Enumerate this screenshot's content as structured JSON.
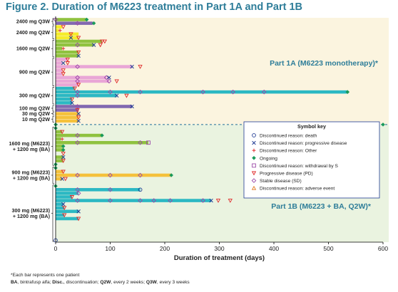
{
  "figure_title": "Figure 2. Duration of M6223 treatment in Part 1A and Part 1B",
  "footnotes": {
    "line1": "*Each bar represents one patient",
    "line2": [
      {
        "t": "BA",
        "b": true
      },
      {
        "t": ", bintrafusp alfa; ",
        "b": false
      },
      {
        "t": "Disc.",
        "b": true
      },
      {
        "t": ", discontinuation; ",
        "b": false
      },
      {
        "t": "Q2W",
        "b": true
      },
      {
        "t": ", every 2 weeks; ",
        "b": false
      },
      {
        "t": "Q3W",
        "b": true
      },
      {
        "t": ", every 3 weeks",
        "b": false
      }
    ]
  },
  "colors": {
    "part1a_bg": "#fbf4df",
    "part1b_bg": "#eaf3e0",
    "yellow": "#f5ec2a",
    "teal": "#2bb8c3",
    "purple": "#8268b0",
    "pink": "#e9a6d6",
    "green": "#8fc23f",
    "orange": "#f5c13b",
    "sym_blue": "#1f3a93",
    "sym_red": "#e02a2a",
    "sym_green": "#1a9a5a",
    "sym_purple": "#9b4aa8",
    "sym_orange": "#e2791c",
    "title_color": "#2e7d99"
  },
  "chart_data": {
    "type": "swimmer",
    "xlabel": "Duration of treatment (days)",
    "xlim": [
      0,
      600
    ],
    "xticks": [
      0,
      100,
      200,
      300,
      400,
      500,
      600
    ],
    "n_rows": 62,
    "part_boundary_after_row": 29,
    "part_labels": [
      "Part 1A (M6223 monotherapy)*",
      "Part 1B (M6223 + BA, Q2W)*"
    ],
    "group_labels": [
      {
        "lines": [
          "2400 mg Q3W"
        ],
        "rows": [
          0,
          1
        ]
      },
      {
        "lines": [
          "2400 mg Q2W"
        ],
        "rows": [
          2,
          5
        ]
      },
      {
        "lines": [
          "1600 mg Q2W"
        ],
        "rows": [
          6,
          10
        ]
      },
      {
        "lines": [
          "900 mg Q2W"
        ],
        "rows": [
          11,
          18
        ]
      },
      {
        "lines": [
          "300 mg Q2W"
        ],
        "rows": [
          19,
          23
        ]
      },
      {
        "lines": [
          "100 mg Q2W"
        ],
        "rows": [
          24,
          25
        ]
      },
      {
        "lines": [
          "30 mg Q2W"
        ],
        "rows": [
          26,
          26
        ]
      },
      {
        "lines": [
          "10 mg Q2W"
        ],
        "rows": [
          27,
          28
        ]
      },
      {
        "lines": [
          "1600 mg (M6223)",
          "+ 1200 mg (BA)"
        ],
        "rows": [
          30,
          40
        ]
      },
      {
        "lines": [
          "900 mg (M6223)",
          "+ 1200 mg (BA)"
        ],
        "rows": [
          41,
          45
        ]
      },
      {
        "lines": [
          "300 mg (M6223)",
          "+ 1200 mg (BA)"
        ],
        "rows": [
          46,
          61
        ]
      }
    ],
    "bars": [
      {
        "row": 0,
        "end": 57,
        "color": "green"
      },
      {
        "row": 1,
        "end": 68,
        "color": "purple"
      },
      {
        "row": 2,
        "end": 12,
        "color": "yellow"
      },
      {
        "row": 3,
        "end": 6,
        "color": "yellow"
      },
      {
        "row": 4,
        "end": 42,
        "color": "yellow"
      },
      {
        "row": 5,
        "end": 42,
        "color": "yellow"
      },
      {
        "row": 6,
        "end": 85,
        "color": "green"
      },
      {
        "row": 7,
        "end": 70,
        "color": "green"
      },
      {
        "row": 8,
        "end": 12,
        "color": "green"
      },
      {
        "row": 9,
        "end": 42,
        "color": "green"
      },
      {
        "row": 10,
        "end": 42,
        "color": "green"
      },
      {
        "row": 11,
        "end": 22,
        "color": "pink"
      },
      {
        "row": 12,
        "end": 12,
        "color": "pink"
      },
      {
        "row": 13,
        "end": 140,
        "color": "pink"
      },
      {
        "row": 14,
        "end": 12,
        "color": "pink"
      },
      {
        "row": 15,
        "end": 12,
        "color": "pink"
      },
      {
        "row": 16,
        "end": 93,
        "color": "pink"
      },
      {
        "row": 17,
        "end": 98,
        "color": "pink"
      },
      {
        "row": 18,
        "end": 42,
        "color": "pink"
      },
      {
        "row": 19,
        "end": 35,
        "color": "teal"
      },
      {
        "row": 20,
        "end": 535,
        "color": "teal"
      },
      {
        "row": 21,
        "end": 112,
        "color": "teal"
      },
      {
        "row": 22,
        "end": 30,
        "color": "teal"
      },
      {
        "row": 23,
        "end": 30,
        "color": "teal"
      },
      {
        "row": 24,
        "end": 140,
        "color": "purple"
      },
      {
        "row": 25,
        "end": 42,
        "color": "purple"
      },
      {
        "row": 26,
        "end": 42,
        "color": "orange"
      },
      {
        "row": 27,
        "end": 42,
        "color": "orange"
      },
      {
        "row": 28,
        "end": 42,
        "color": "orange"
      },
      {
        "row": 31,
        "end": 12,
        "color": "green"
      },
      {
        "row": 32,
        "end": 85,
        "color": "green"
      },
      {
        "row": 33,
        "end": 10,
        "color": "green"
      },
      {
        "row": 34,
        "end": 170,
        "color": "green"
      },
      {
        "row": 35,
        "end": 14,
        "color": "green"
      },
      {
        "row": 36,
        "end": 14,
        "color": "green"
      },
      {
        "row": 38,
        "end": 14,
        "color": "green"
      },
      {
        "row": 39,
        "end": 14,
        "color": "green"
      },
      {
        "row": 42,
        "end": 14,
        "color": "orange"
      },
      {
        "row": 43,
        "end": 212,
        "color": "orange"
      },
      {
        "row": 44,
        "end": 12,
        "color": "orange"
      },
      {
        "row": 47,
        "end": 155,
        "color": "teal"
      },
      {
        "row": 48,
        "end": 42,
        "color": "teal"
      },
      {
        "row": 49,
        "end": 30,
        "color": "teal"
      },
      {
        "row": 50,
        "end": 285,
        "color": "teal"
      },
      {
        "row": 51,
        "end": 14,
        "color": "teal"
      },
      {
        "row": 52,
        "end": 16,
        "color": "teal"
      },
      {
        "row": 53,
        "end": 42,
        "color": "teal"
      },
      {
        "row": 54,
        "end": 16,
        "color": "teal"
      },
      {
        "row": 55,
        "end": 42,
        "color": "teal"
      }
    ],
    "markers": [
      {
        "row": 0,
        "x": 0,
        "type": "sd"
      },
      {
        "row": 0,
        "x": 57,
        "type": "ongoing"
      },
      {
        "row": 1,
        "x": 40,
        "type": "sd"
      },
      {
        "row": 1,
        "x": 70,
        "type": "ongoing"
      },
      {
        "row": 2,
        "x": 14,
        "type": "pd"
      },
      {
        "row": 3,
        "x": 8,
        "type": "other"
      },
      {
        "row": 4,
        "x": 28,
        "type": "pd"
      },
      {
        "row": 5,
        "x": 28,
        "type": "cross"
      },
      {
        "row": 5,
        "x": 42,
        "type": "pd"
      },
      {
        "row": 6,
        "x": 85,
        "type": "pd"
      },
      {
        "row": 6,
        "x": 90,
        "type": "pd"
      },
      {
        "row": 7,
        "x": 40,
        "type": "sd"
      },
      {
        "row": 7,
        "x": 70,
        "type": "cross"
      },
      {
        "row": 7,
        "x": 82,
        "type": "pd"
      },
      {
        "row": 8,
        "x": 14,
        "type": "other"
      },
      {
        "row": 9,
        "x": 42,
        "type": "pd"
      },
      {
        "row": 10,
        "x": 42,
        "type": "cross"
      },
      {
        "row": 11,
        "x": 22,
        "type": "pd"
      },
      {
        "row": 12,
        "x": 14,
        "type": "cross"
      },
      {
        "row": 12,
        "x": 22,
        "type": "pd"
      },
      {
        "row": 13,
        "x": 40,
        "type": "sd"
      },
      {
        "row": 13,
        "x": 140,
        "type": "cross"
      },
      {
        "row": 13,
        "x": 155,
        "type": "pd"
      },
      {
        "row": 14,
        "x": 14,
        "type": "pd"
      },
      {
        "row": 15,
        "x": 14,
        "type": "pd"
      },
      {
        "row": 16,
        "x": 40,
        "type": "sd"
      },
      {
        "row": 16,
        "x": 93,
        "type": "sd"
      },
      {
        "row": 16,
        "x": 98,
        "type": "cross"
      },
      {
        "row": 17,
        "x": 40,
        "type": "sd"
      },
      {
        "row": 17,
        "x": 98,
        "type": "sd"
      },
      {
        "row": 17,
        "x": 112,
        "type": "pd"
      },
      {
        "row": 18,
        "x": 42,
        "type": "pd"
      },
      {
        "row": 19,
        "x": 35,
        "type": "pd"
      },
      {
        "row": 20,
        "x": 40,
        "type": "sd"
      },
      {
        "row": 20,
        "x": 100,
        "type": "sd"
      },
      {
        "row": 20,
        "x": 155,
        "type": "sd"
      },
      {
        "row": 20,
        "x": 270,
        "type": "sd"
      },
      {
        "row": 20,
        "x": 325,
        "type": "sd"
      },
      {
        "row": 20,
        "x": 382,
        "type": "sd"
      },
      {
        "row": 20,
        "x": 535,
        "type": "ongoing"
      },
      {
        "row": 21,
        "x": 40,
        "type": "sd"
      },
      {
        "row": 21,
        "x": 112,
        "type": "cross"
      },
      {
        "row": 21,
        "x": 130,
        "type": "pd"
      },
      {
        "row": 22,
        "x": 30,
        "type": "pd"
      },
      {
        "row": 23,
        "x": 30,
        "type": "cross"
      },
      {
        "row": 24,
        "x": 40,
        "type": "sd"
      },
      {
        "row": 24,
        "x": 140,
        "type": "cross"
      },
      {
        "row": 25,
        "x": 40,
        "type": "pd"
      },
      {
        "row": 26,
        "x": 42,
        "type": "cross"
      },
      {
        "row": 27,
        "x": 42,
        "type": "pd"
      },
      {
        "row": 28,
        "x": 42,
        "type": "cross"
      },
      {
        "row": 29,
        "x": 0,
        "type": "ongoing"
      },
      {
        "row": 29,
        "x": 600,
        "type": "ongoing"
      },
      {
        "row": 30,
        "x": 0,
        "type": "ongoing"
      },
      {
        "row": 31,
        "x": 12,
        "type": "pd"
      },
      {
        "row": 32,
        "x": 40,
        "type": "sd"
      },
      {
        "row": 32,
        "x": 85,
        "type": "ongoing"
      },
      {
        "row": 33,
        "x": 12,
        "type": "other"
      },
      {
        "row": 34,
        "x": 40,
        "type": "sd"
      },
      {
        "row": 34,
        "x": 155,
        "type": "sd"
      },
      {
        "row": 34,
        "x": 170,
        "type": "withdrawal"
      },
      {
        "row": 35,
        "x": 14,
        "type": "ongoing"
      },
      {
        "row": 36,
        "x": 14,
        "type": "ongoing"
      },
      {
        "row": 37,
        "x": 14,
        "type": "pd"
      },
      {
        "row": 38,
        "x": 14,
        "type": "cross"
      },
      {
        "row": 39,
        "x": 14,
        "type": "pd"
      },
      {
        "row": 40,
        "x": 0,
        "type": "ongoing"
      },
      {
        "row": 41,
        "x": 0,
        "type": "ongoing"
      },
      {
        "row": 42,
        "x": 14,
        "type": "pd"
      },
      {
        "row": 43,
        "x": 40,
        "type": "sd"
      },
      {
        "row": 43,
        "x": 100,
        "type": "sd"
      },
      {
        "row": 43,
        "x": 155,
        "type": "sd"
      },
      {
        "row": 43,
        "x": 212,
        "type": "ongoing"
      },
      {
        "row": 44,
        "x": 12,
        "type": "cross"
      },
      {
        "row": 44,
        "x": 18,
        "type": "pd"
      },
      {
        "row": 46,
        "x": 0,
        "type": "ongoing"
      },
      {
        "row": 47,
        "x": 40,
        "type": "sd"
      },
      {
        "row": 47,
        "x": 100,
        "type": "sd"
      },
      {
        "row": 47,
        "x": 155,
        "type": "death"
      },
      {
        "row": 48,
        "x": 42,
        "type": "sd"
      },
      {
        "row": 49,
        "x": 30,
        "type": "pd"
      },
      {
        "row": 50,
        "x": 40,
        "type": "sd"
      },
      {
        "row": 50,
        "x": 100,
        "type": "sd"
      },
      {
        "row": 50,
        "x": 155,
        "type": "sd"
      },
      {
        "row": 50,
        "x": 180,
        "type": "sd"
      },
      {
        "row": 50,
        "x": 210,
        "type": "sd"
      },
      {
        "row": 50,
        "x": 270,
        "type": "sd"
      },
      {
        "row": 50,
        "x": 285,
        "type": "cross"
      },
      {
        "row": 50,
        "x": 298,
        "type": "pd"
      },
      {
        "row": 50,
        "x": 320,
        "type": "pd"
      },
      {
        "row": 51,
        "x": 14,
        "type": "cross"
      },
      {
        "row": 52,
        "x": 16,
        "type": "pd"
      },
      {
        "row": 53,
        "x": 42,
        "type": "cross"
      },
      {
        "row": 54,
        "x": 16,
        "type": "pd"
      },
      {
        "row": 55,
        "x": 42,
        "type": "pd"
      },
      {
        "row": 61,
        "x": 0,
        "type": "death"
      }
    ],
    "legend": {
      "title": "Symbol key",
      "placement": "right",
      "items": [
        {
          "type": "death",
          "label": "Discontinued reason: death"
        },
        {
          "type": "cross",
          "label": "Discontinued reason: progressive disease"
        },
        {
          "type": "other",
          "label": "Discontinued reason: Other"
        },
        {
          "type": "ongoing",
          "label": "Ongoing"
        },
        {
          "type": "withdrawal",
          "label": "Discontinued reason: withdrawal by S"
        },
        {
          "type": "pd",
          "label": "Progressive disease (PD)"
        },
        {
          "type": "sd",
          "label": "Stable disease (SD)"
        },
        {
          "type": "adverse",
          "label": "Discontinued reason: adverse event"
        }
      ]
    }
  }
}
